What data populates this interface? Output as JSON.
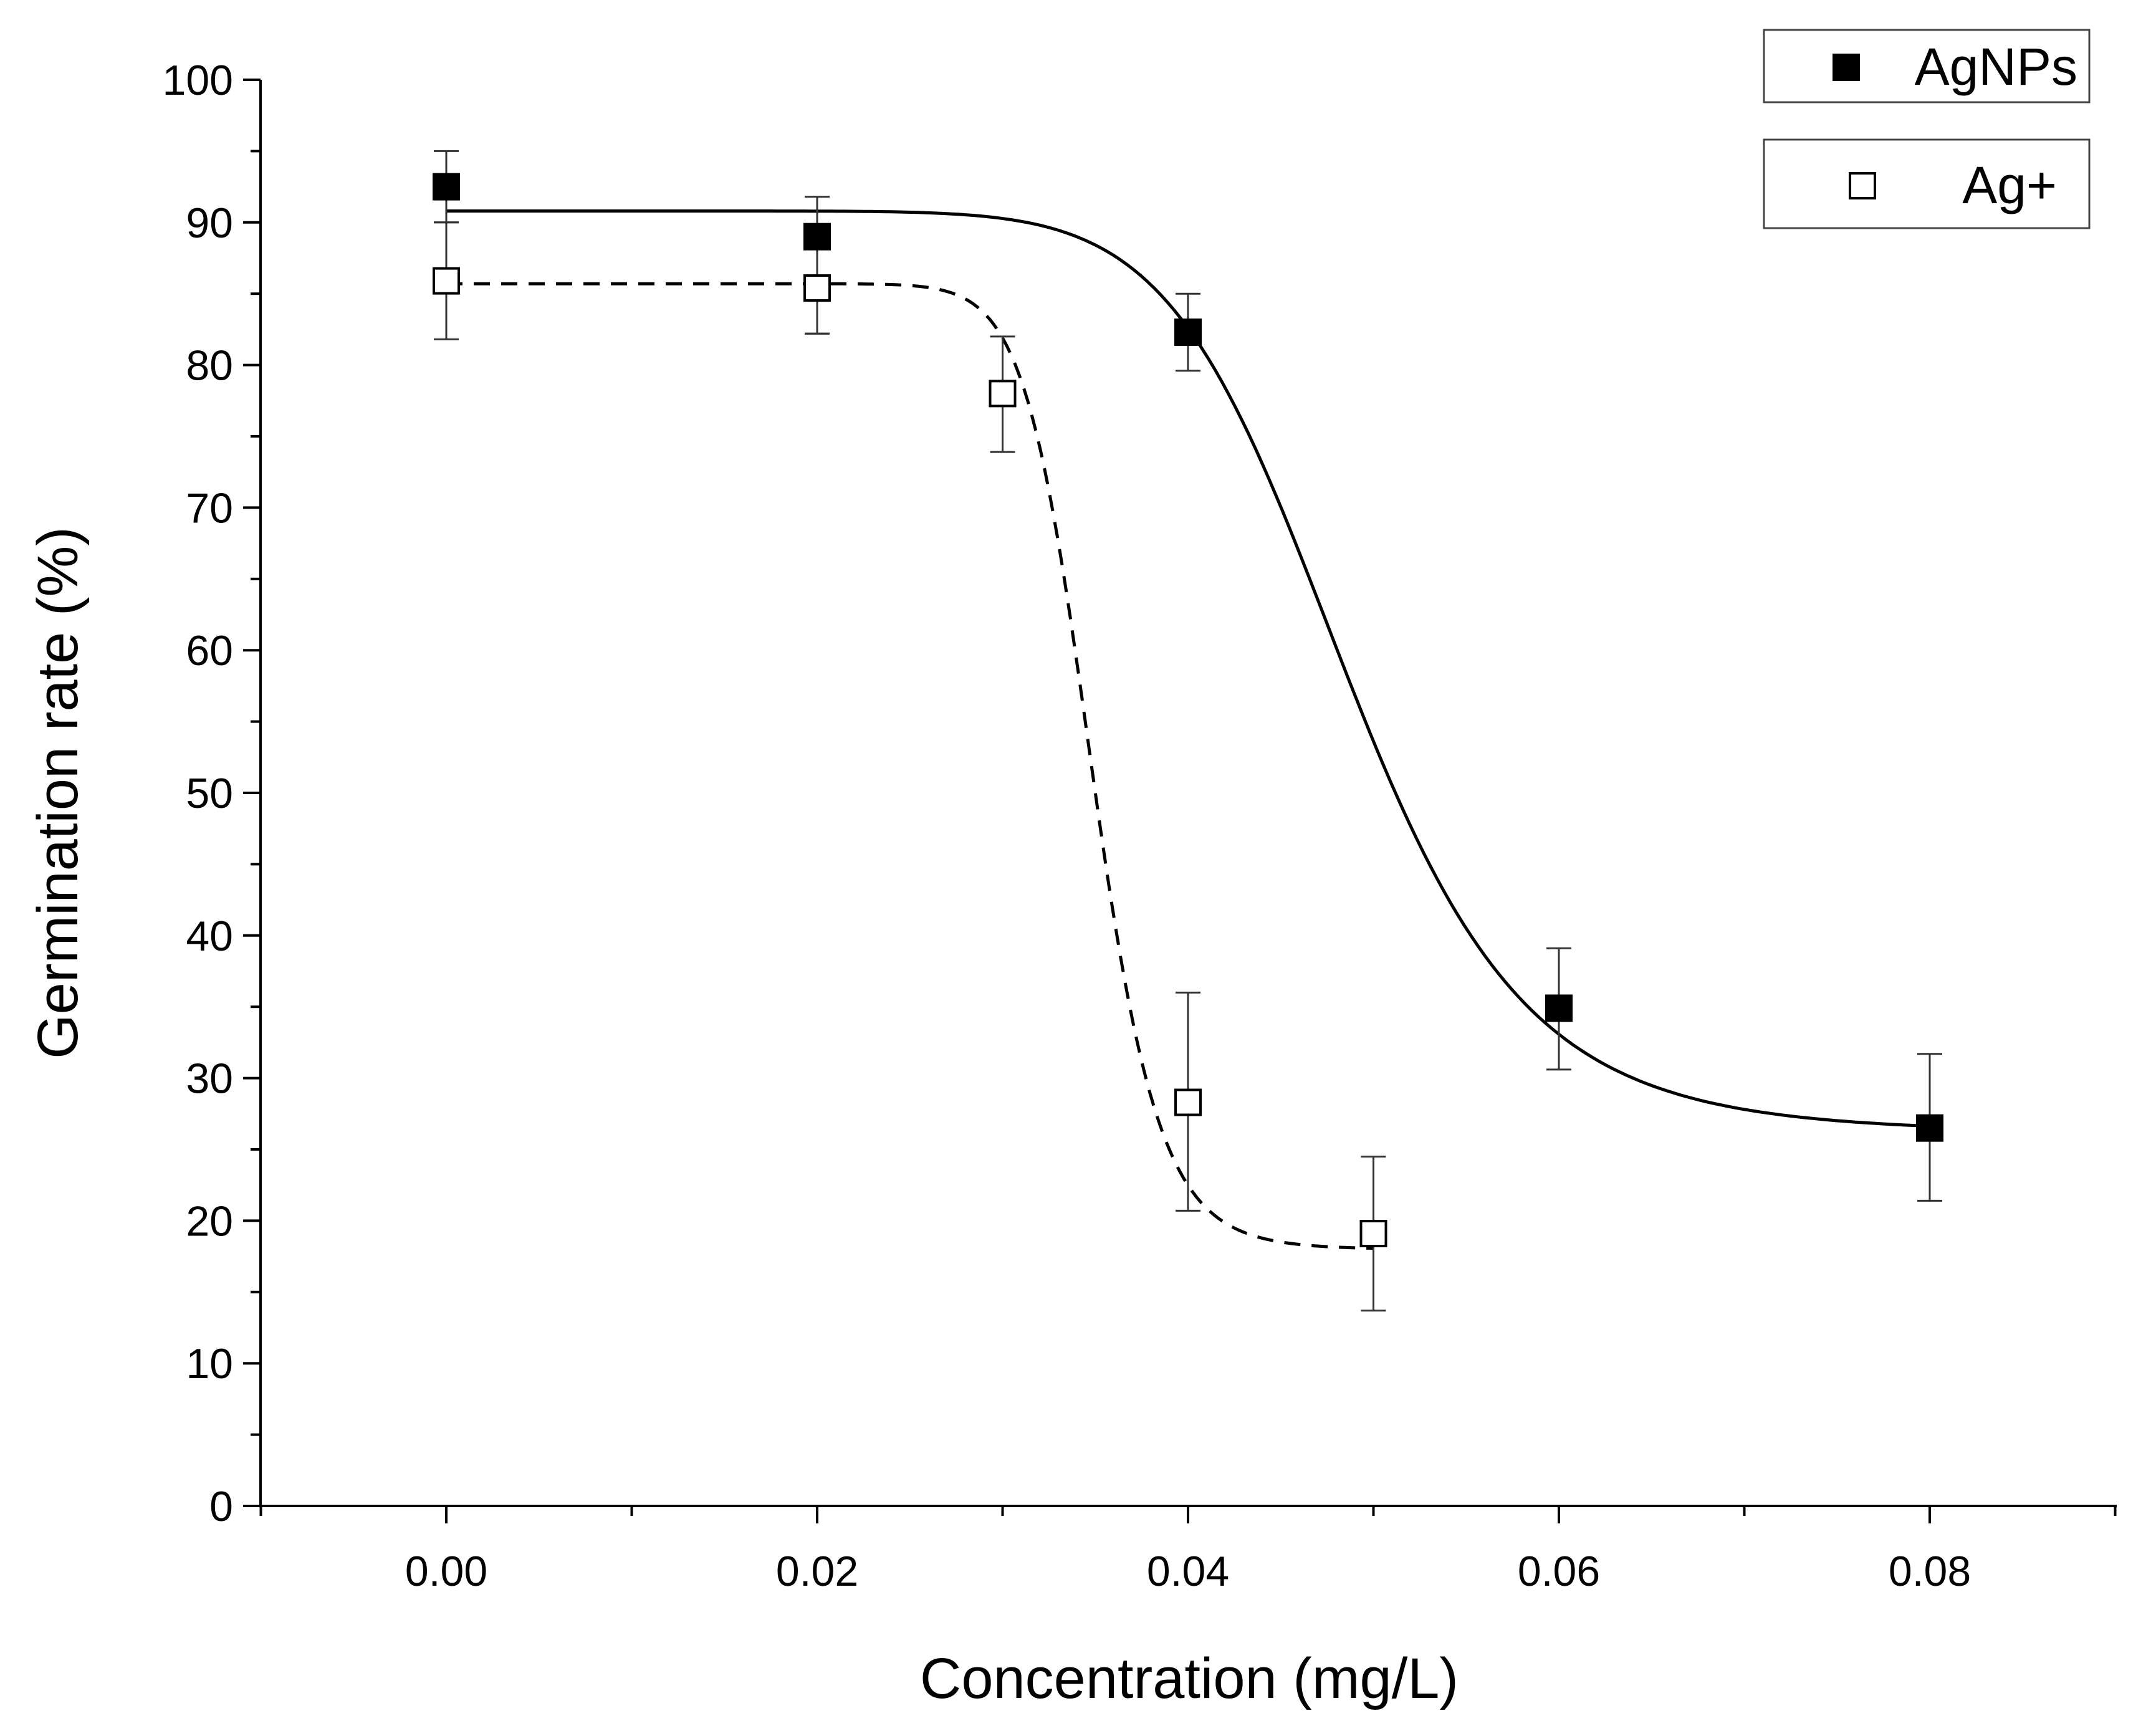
{
  "chart_data": {
    "type": "scatter",
    "title": "",
    "xlabel": "Concentration (mg/L)",
    "ylabel": "Germination rate (%)",
    "xlim": [
      -0.01,
      0.09
    ],
    "ylim": [
      0,
      100
    ],
    "xticks": [
      0.0,
      0.02,
      0.04,
      0.06,
      0.08
    ],
    "xtick_labels": [
      "0.00",
      "0.02",
      "0.04",
      "0.06",
      "0.08"
    ],
    "yticks": [
      0,
      10,
      20,
      30,
      40,
      50,
      60,
      70,
      80,
      90,
      100
    ],
    "ytick_labels": [
      "0",
      "10",
      "20",
      "30",
      "40",
      "50",
      "60",
      "70",
      "80",
      "90",
      "100"
    ],
    "legend_position": "top-right",
    "series": [
      {
        "name": "AgNPs",
        "marker": "filled-square",
        "fit_line": "solid",
        "x": [
          0.0,
          0.02,
          0.04,
          0.06,
          0.08
        ],
        "y": [
          92.5,
          89.0,
          82.3,
          34.9,
          26.5
        ],
        "err_low": [
          90.0,
          82.2,
          79.6,
          30.6,
          21.4
        ],
        "err_high": [
          95.0,
          91.8,
          85.0,
          39.1,
          31.7
        ],
        "fit": {
          "top": 90.8,
          "bottom": 26.2,
          "x0": 0.0485,
          "p": 10
        }
      },
      {
        "name": "Ag+",
        "marker": "open-square",
        "fit_line": "dashed",
        "x": [
          0.0,
          0.02,
          0.03,
          0.04,
          0.05
        ],
        "y": [
          85.9,
          85.4,
          78.0,
          28.3,
          19.1
        ],
        "err_low": [
          81.8,
          82.2,
          73.9,
          20.7,
          13.7
        ],
        "err_high": [
          90.0,
          88.6,
          82.0,
          36.0,
          24.5
        ],
        "fit": {
          "top": 85.7,
          "bottom": 18.0,
          "x0": 0.0348,
          "p": 19
        }
      }
    ]
  }
}
